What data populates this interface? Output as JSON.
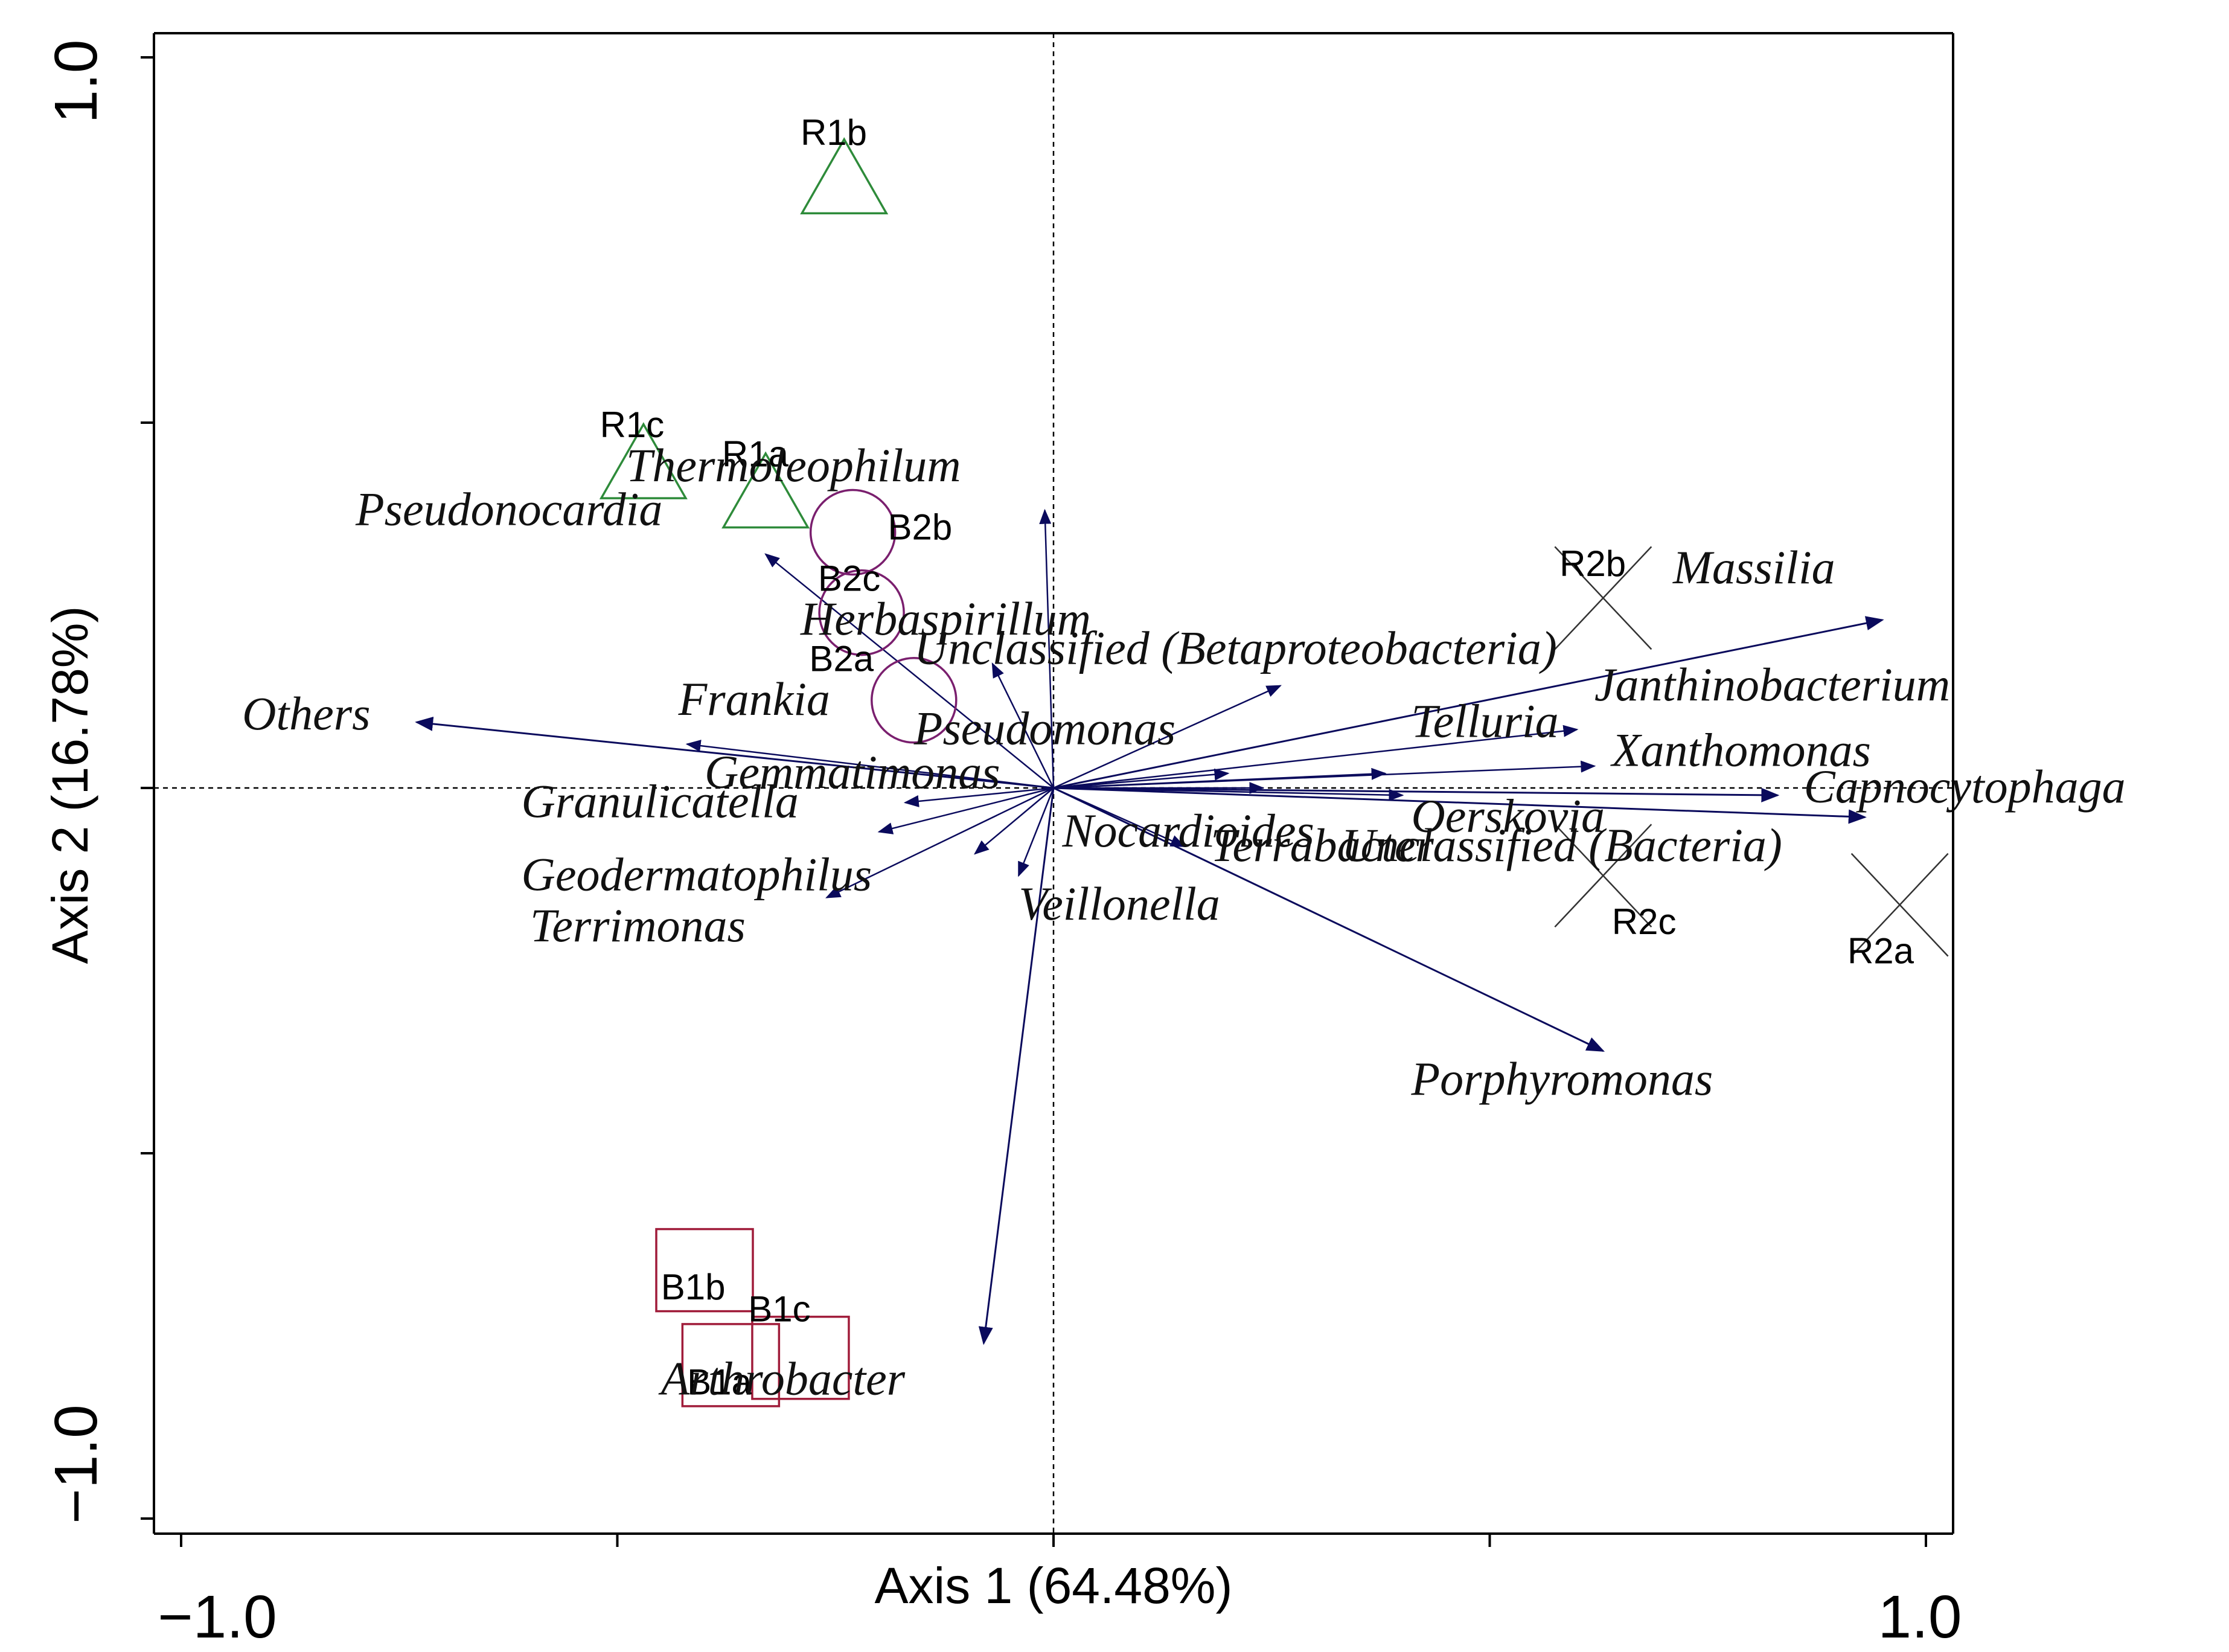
{
  "chart_data": {
    "type": "scatter",
    "subtype": "biplot",
    "xlabel": "Axis 1 (64.48%)",
    "ylabel": "Axis 2 (16.78%)",
    "xlim": [
      -1.0,
      1.0
    ],
    "ylim": [
      -1.0,
      1.0
    ],
    "x_tick_values": [
      -1.0,
      -0.5,
      0,
      0.5,
      1.0
    ],
    "y_tick_values": [
      -1.0,
      -0.5,
      0,
      0.5,
      1.0
    ],
    "x_tick_labels": [
      "−1.0",
      "1.0"
    ],
    "y_tick_labels": [
      "1.0",
      "−1.0"
    ],
    "colors": {
      "arrow": "#0a0a5c",
      "R1": "#2e8b3a",
      "B2": "#7a1f6e",
      "B1": "#a01c3a",
      "R2": "#333333",
      "axis": "#000000"
    },
    "samples": [
      {
        "name": "R1a",
        "group": "R1",
        "marker": "triangle",
        "x": -0.33,
        "y": 0.4
      },
      {
        "name": "R1b",
        "group": "R1",
        "marker": "triangle",
        "x": -0.24,
        "y": 0.83
      },
      {
        "name": "R1c",
        "group": "R1",
        "marker": "triangle",
        "x": -0.47,
        "y": 0.44
      },
      {
        "name": "B2a",
        "group": "B2",
        "marker": "circle",
        "x": -0.16,
        "y": 0.12
      },
      {
        "name": "B2b",
        "group": "B2",
        "marker": "circle",
        "x": -0.23,
        "y": 0.35
      },
      {
        "name": "B2c",
        "group": "B2",
        "marker": "circle",
        "x": -0.22,
        "y": 0.24
      },
      {
        "name": "B1a",
        "group": "B1",
        "marker": "square",
        "x": -0.37,
        "y": -0.79
      },
      {
        "name": "B1b",
        "group": "B1",
        "marker": "square",
        "x": -0.4,
        "y": -0.66
      },
      {
        "name": "B1c",
        "group": "B1",
        "marker": "square",
        "x": -0.29,
        "y": -0.78
      },
      {
        "name": "R2a",
        "group": "R2",
        "marker": "cross",
        "x": 0.97,
        "y": -0.16
      },
      {
        "name": "R2b",
        "group": "R2",
        "marker": "cross",
        "x": 0.63,
        "y": 0.26
      },
      {
        "name": "R2c",
        "group": "R2",
        "marker": "cross",
        "x": 0.63,
        "y": -0.12
      }
    ],
    "variables": [
      {
        "name": "Massilia",
        "x": 0.95,
        "y": 0.23
      },
      {
        "name": "Janthinobacterium",
        "x": 0.6,
        "y": 0.08
      },
      {
        "name": "Xanthomonas",
        "x": 0.62,
        "y": 0.03
      },
      {
        "name": "Capnocytophaga",
        "x": 0.83,
        "y": -0.01
      },
      {
        "name": "Telluria",
        "x": 0.38,
        "y": 0.02
      },
      {
        "name": "Oerskovia",
        "x": 0.4,
        "y": -0.01
      },
      {
        "name": "Unclassified (Bacteria)",
        "x": 0.93,
        "y": -0.04
      },
      {
        "name": "Porphyromonas",
        "x": 0.63,
        "y": -0.36
      },
      {
        "name": "Unclassified (Betaproteobacteria)",
        "x": 0.26,
        "y": 0.14
      },
      {
        "name": "Pseudomonas",
        "x": 0.2,
        "y": 0.02
      },
      {
        "name": "Nocardioides",
        "x": 0.15,
        "y": -0.08
      },
      {
        "name": "Terrabacter",
        "x": 0.24,
        "y": 0.0
      },
      {
        "name": "Veillonella",
        "x": -0.04,
        "y": -0.12
      },
      {
        "name": "Thermoleophilum",
        "x": -0.01,
        "y": 0.38
      },
      {
        "name": "Herbaspirillum",
        "x": -0.07,
        "y": 0.17
      },
      {
        "name": "Pseudonocardia",
        "x": -0.33,
        "y": 0.32
      },
      {
        "name": "Frankia",
        "x": -0.42,
        "y": 0.06
      },
      {
        "name": "Others",
        "x": -0.73,
        "y": 0.09
      },
      {
        "name": "Gemmatimonas",
        "x": -0.17,
        "y": -0.02
      },
      {
        "name": "Granulicatella",
        "x": -0.2,
        "y": -0.06
      },
      {
        "name": "Geodermatophilus",
        "x": -0.26,
        "y": -0.15
      },
      {
        "name": "Terrimonas",
        "x": -0.09,
        "y": -0.09
      },
      {
        "name": "Arthrobacter",
        "x": -0.08,
        "y": -0.76
      }
    ],
    "variable_labels": [
      {
        "text": "Massilia",
        "x": 0.71,
        "y": 0.28
      },
      {
        "text": "Janthinobacterium",
        "x": 0.62,
        "y": 0.12
      },
      {
        "text": "Xanthomonas",
        "x": 0.64,
        "y": 0.03
      },
      {
        "text": "Capnocytophaga",
        "x": 0.86,
        "y": -0.02
      },
      {
        "text": "Telluria",
        "x": 0.41,
        "y": 0.07
      },
      {
        "text": "Oerskovia",
        "x": 0.41,
        "y": -0.06
      },
      {
        "text": "Unclassified (Bacteria)",
        "x": 0.33,
        "y": -0.1
      },
      {
        "text": "Porphyromonas",
        "x": 0.41,
        "y": -0.42
      },
      {
        "text": "Unclassified (Betaproteobacteria)",
        "x": -0.16,
        "y": 0.17
      },
      {
        "text": "Pseudomonas",
        "x": -0.16,
        "y": 0.06
      },
      {
        "text": "Nocardioides",
        "x": 0.01,
        "y": -0.08
      },
      {
        "text": "Terrabacter",
        "x": 0.18,
        "y": -0.1
      },
      {
        "text": "Veillonella",
        "x": -0.04,
        "y": -0.18
      },
      {
        "text": "Thermoleophilum",
        "x": -0.49,
        "y": 0.42
      },
      {
        "text": "Herbaspirillum",
        "x": -0.29,
        "y": 0.21
      },
      {
        "text": "Pseudonocardia",
        "x": -0.8,
        "y": 0.36
      },
      {
        "text": "Frankia",
        "x": -0.43,
        "y": 0.1
      },
      {
        "text": "Others",
        "x": -0.93,
        "y": 0.08
      },
      {
        "text": "Gemmatimonas",
        "x": -0.4,
        "y": 0.0
      },
      {
        "text": "Granulicatella",
        "x": -0.61,
        "y": -0.04
      },
      {
        "text": "Geodermatophilus",
        "x": -0.61,
        "y": -0.14
      },
      {
        "text": "Terrimonas",
        "x": -0.6,
        "y": -0.21
      },
      {
        "text": "Arthrobacter",
        "x": -0.45,
        "y": -0.83
      }
    ],
    "sample_label_positions": [
      {
        "name": "R1a",
        "x": -0.38,
        "y": 0.44
      },
      {
        "name": "R1b",
        "x": -0.29,
        "y": 0.88
      },
      {
        "name": "R1c",
        "x": -0.52,
        "y": 0.48
      },
      {
        "name": "B2a",
        "x": -0.28,
        "y": 0.16
      },
      {
        "name": "B2b",
        "x": -0.19,
        "y": 0.34
      },
      {
        "name": "B2c",
        "x": -0.27,
        "y": 0.27
      },
      {
        "name": "B1a",
        "x": -0.42,
        "y": -0.83
      },
      {
        "name": "B1b",
        "x": -0.45,
        "y": -0.7
      },
      {
        "name": "B1c",
        "x": -0.35,
        "y": -0.73
      },
      {
        "name": "R2a",
        "x": 0.91,
        "y": -0.24
      },
      {
        "name": "R2b",
        "x": 0.58,
        "y": 0.29
      },
      {
        "name": "R2c",
        "x": 0.64,
        "y": -0.2
      }
    ]
  }
}
